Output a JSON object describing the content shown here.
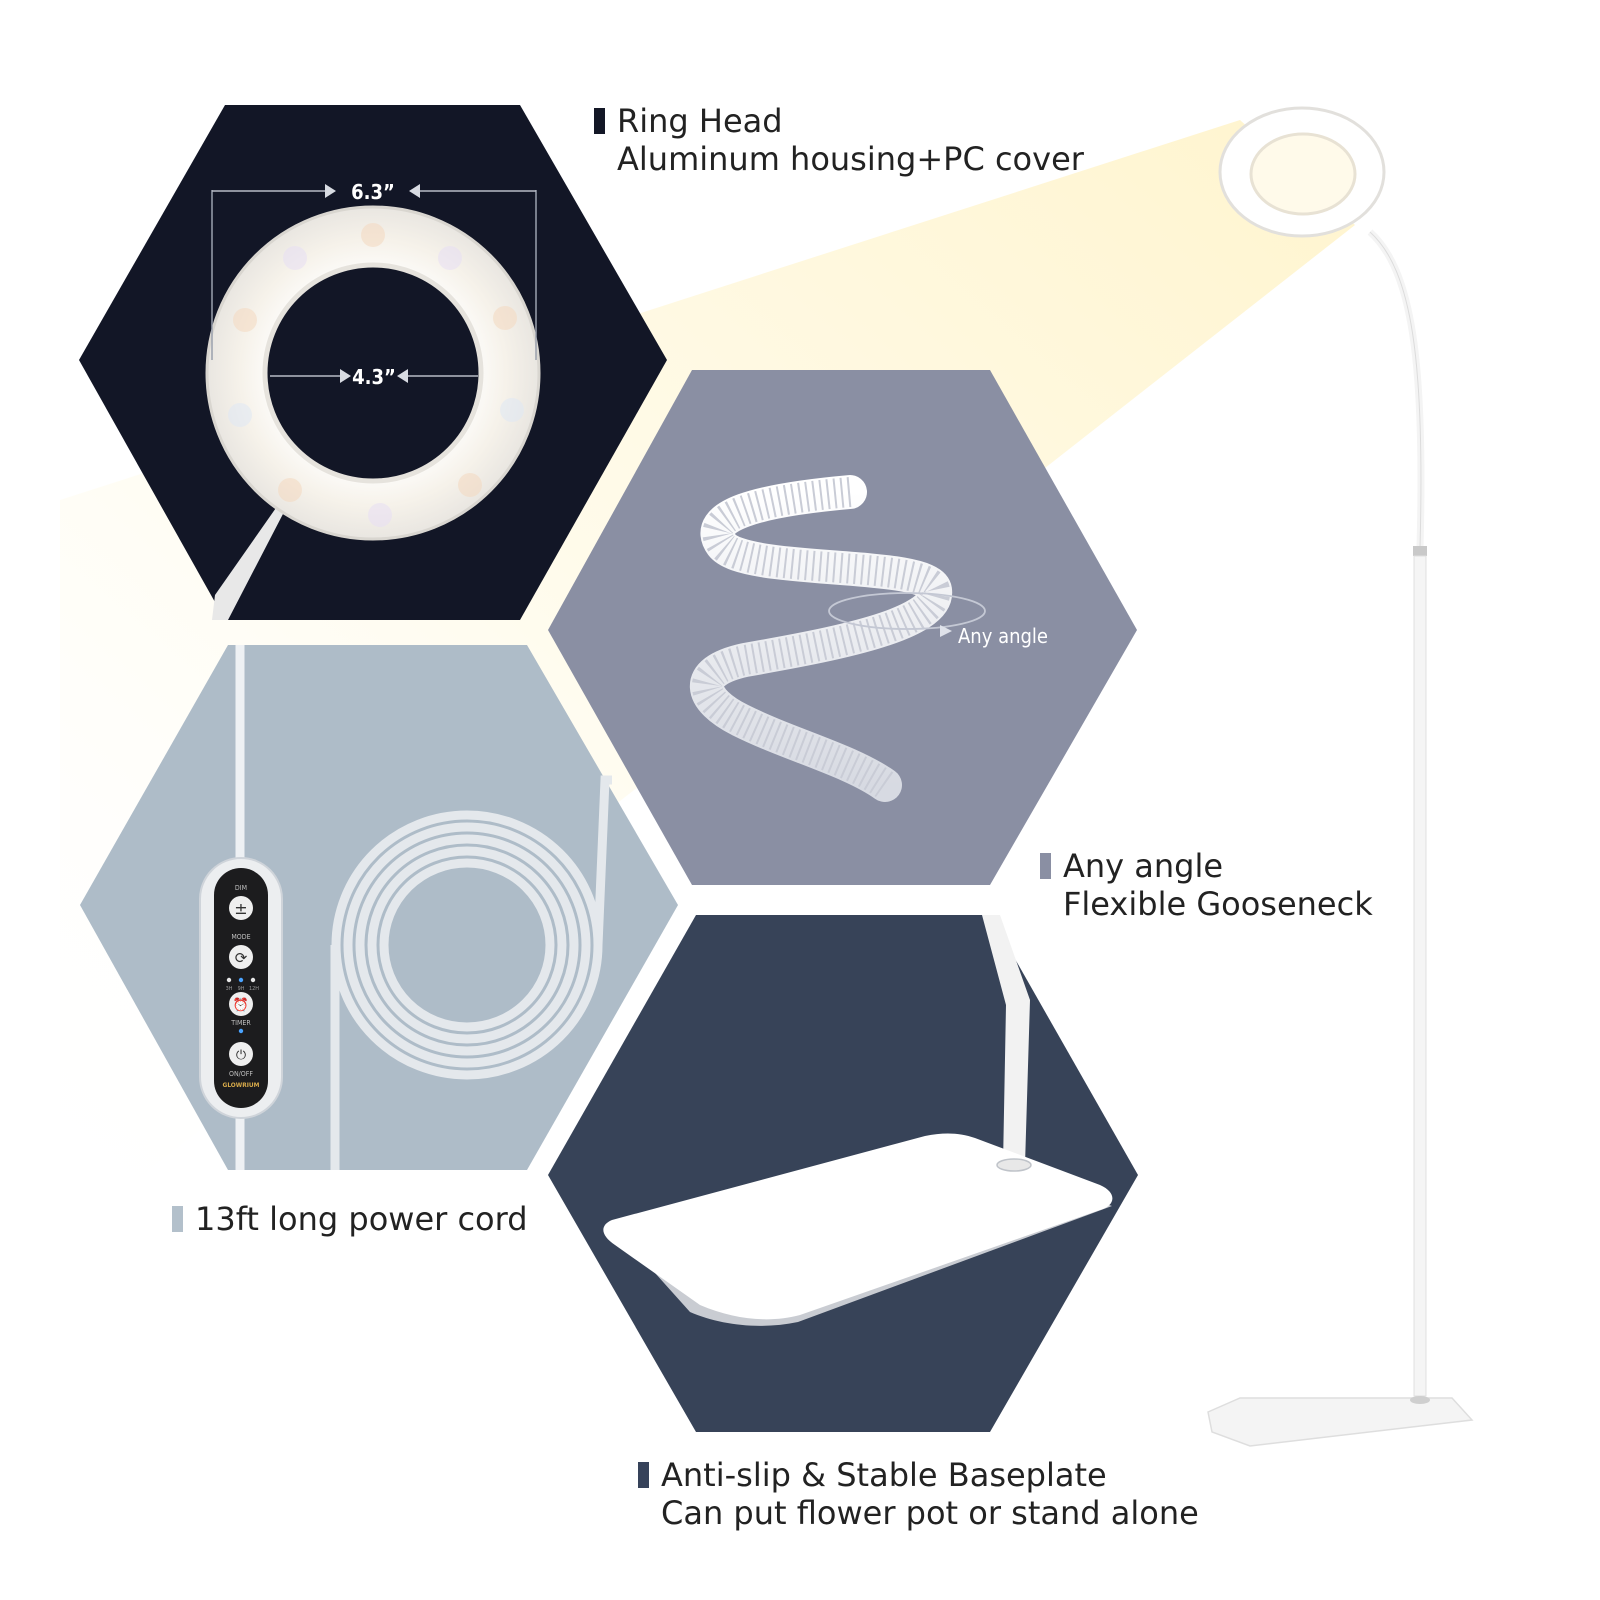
{
  "features": {
    "ring_head": {
      "title": "Ring Head",
      "subtitle": "Aluminum housing+PC cover",
      "outer_diameter": "6.3”",
      "inner_diameter": "4.3”",
      "bar_color": "#131726"
    },
    "gooseneck": {
      "title": "Any angle",
      "subtitle": "Flexible Gooseneck",
      "rotation_label": "Any angle",
      "bar_color": "#8a8fa3"
    },
    "power_cord": {
      "title": "13ft long power cord",
      "bar_color": "#b3c0cb"
    },
    "baseplate": {
      "title": "Anti-slip & Stable Baseplate",
      "subtitle": "Can put flower pot or stand alone",
      "bar_color": "#36425a"
    }
  },
  "controller": {
    "brand": "GLOWRIUM",
    "buttons": [
      {
        "label": "DIM",
        "icon": "plus-minus-icon"
      },
      {
        "label": "MODE",
        "icon": "cycle-icon"
      },
      {
        "label": "TIMER",
        "icon": "alarm-clock-icon",
        "options": [
          "3H",
          "9H",
          "12H"
        ]
      },
      {
        "label": "ON/OFF",
        "icon": "power-icon"
      }
    ]
  },
  "colors": {
    "hex_ring": "#121626",
    "hex_gooseneck": "#8a8fa3",
    "hex_cord": "#aebcc8",
    "hex_base": "#374358",
    "glow": "#fff7d9"
  }
}
